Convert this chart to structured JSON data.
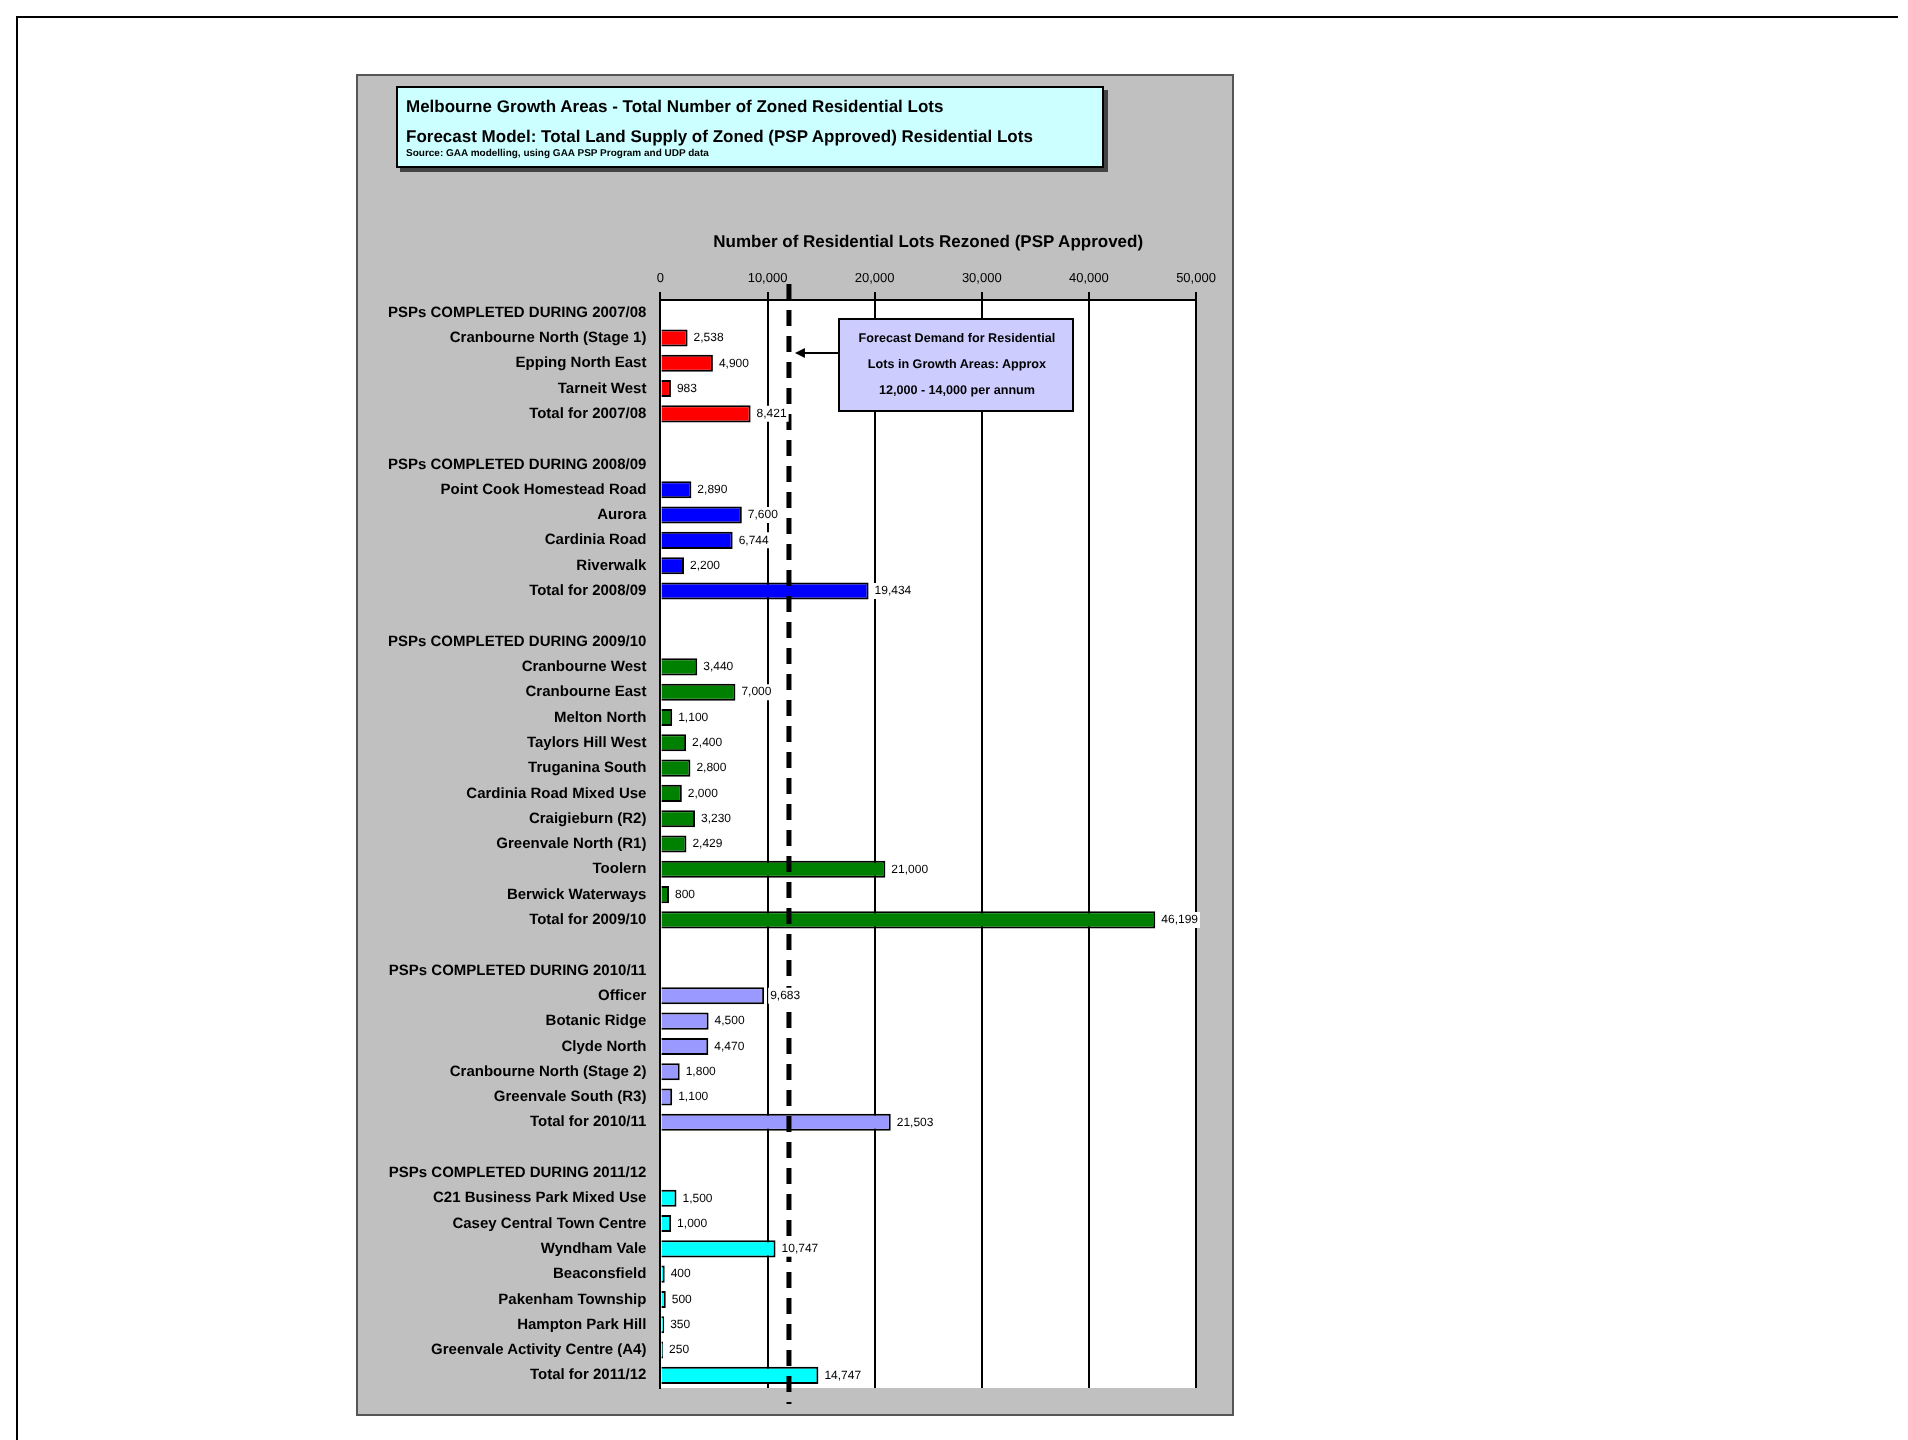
{
  "chart_data": {
    "type": "bar",
    "orientation": "horizontal",
    "title": "Melbourne Growth Areas - Total Number of Zoned Residential Lots",
    "subtitle": "Forecast Model: Total Land Supply of Zoned (PSP Approved) Residential Lots",
    "annotations": [
      "Source: GAA modelling, using GAA PSP Program and UDP data"
    ],
    "xlabel": "Number of Residential Lots Rezoned (PSP Approved)",
    "categories": [
      "PSPs COMPLETED DURING 2007/08",
      "Cranbourne North (Stage 1)",
      "Epping North East",
      "Tarneit West",
      "Total for 2007/08",
      null,
      "PSPs COMPLETED DURING 2008/09",
      "Point Cook Homestead Road",
      "Aurora",
      "Cardinia Road",
      "Riverwalk",
      "Total for 2008/09",
      null,
      "PSPs COMPLETED DURING 2009/10",
      "Cranbourne West",
      "Cranbourne East",
      "Melton North",
      "Taylors Hill West",
      "Truganina South",
      "Cardinia Road Mixed Use",
      "Craigieburn (R2)",
      "Greenvale North (R1)",
      "Toolern",
      "Berwick Waterways",
      "Total for 2009/10",
      null,
      "PSPs COMPLETED DURING 2010/11",
      "Officer",
      "Botanic Ridge",
      "Clyde North",
      "Cranbourne North (Stage 2)",
      "Greenvale South (R3)",
      "Total for 2010/11",
      null,
      "PSPs COMPLETED DURING 2011/12",
      "C21 Business Park Mixed Use",
      "Casey Central Town Centre",
      "Wyndham Vale",
      "Beaconsfield",
      "Pakenham Township",
      "Hampton Park Hill",
      "Greenvale Activity Centre (A4)",
      "Total for 2011/12"
    ],
    "values": [
      null,
      2538,
      4900,
      983,
      8421,
      null,
      null,
      2890,
      7600,
      6744,
      2200,
      19434,
      null,
      null,
      3440,
      7000,
      1100,
      2400,
      2800,
      2000,
      3230,
      2429,
      21000,
      800,
      46199,
      null,
      null,
      9683,
      4500,
      4470,
      1800,
      1100,
      21503,
      null,
      null,
      1500,
      1000,
      10747,
      400,
      500,
      350,
      250,
      14747
    ],
    "value_labels": [
      null,
      "2,538",
      "4,900",
      "983",
      "8,421",
      null,
      null,
      "2,890",
      "7,600",
      "6,744",
      "2,200",
      "19,434",
      null,
      null,
      "3,440",
      "7,000",
      "1,100",
      "2,400",
      "2,800",
      "2,000",
      "3,230",
      "2,429",
      "21,000",
      "800",
      "46,199",
      null,
      null,
      "9,683",
      "4,500",
      "4,470",
      "1,800",
      "1,100",
      "21,503",
      null,
      null,
      "1,500",
      "1,000",
      "10,747",
      "400",
      "500",
      "350",
      "250",
      "14,747"
    ],
    "colors": [
      "#ff0000",
      "#ff0000",
      "#ff0000",
      "#ff0000",
      "#ff0000",
      "#ff0000",
      "#0000ff",
      "#0000ff",
      "#0000ff",
      "#0000ff",
      "#0000ff",
      "#0000ff",
      "#0000ff",
      "#008000",
      "#008000",
      "#008000",
      "#008000",
      "#008000",
      "#008000",
      "#008000",
      "#008000",
      "#008000",
      "#008000",
      "#008000",
      "#008000",
      "#008000",
      "#9999ff",
      "#9999ff",
      "#9999ff",
      "#9999ff",
      "#9999ff",
      "#9999ff",
      "#9999ff",
      "#9999ff",
      "#00ffff",
      "#00ffff",
      "#00ffff",
      "#00ffff",
      "#00ffff",
      "#00ffff",
      "#00ffff",
      "#00ffff",
      "#00ffff"
    ],
    "xlim": [
      0,
      50000
    ],
    "xticks": [
      {
        "value": 0,
        "label": "0"
      },
      {
        "value": 10000,
        "label": "10,000"
      },
      {
        "value": 20000,
        "label": "20,000"
      },
      {
        "value": 30000,
        "label": "30,000"
      },
      {
        "value": 40000,
        "label": "40,000"
      },
      {
        "value": 50000,
        "label": "50,000"
      }
    ],
    "grid": "x",
    "legend": false,
    "ref_lines": [
      {
        "axis": "x",
        "value": 12000,
        "label": "Forecast Demand for Residential Lots in Growth Areas: Approx 12,000 - 14,000 per annum",
        "color": "#000000",
        "line_style": "dashed"
      }
    ]
  }
}
